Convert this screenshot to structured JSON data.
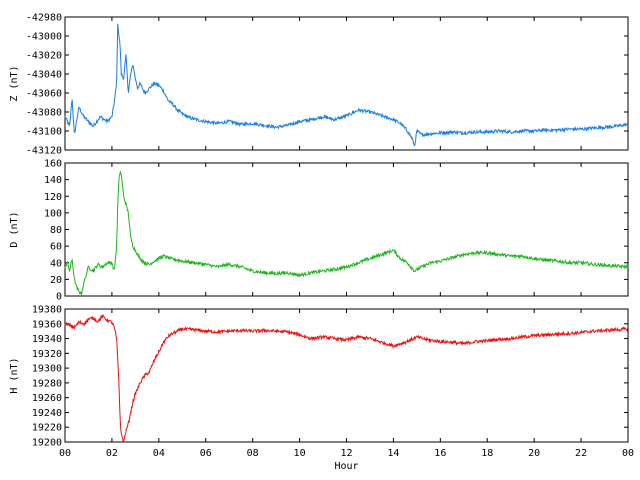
{
  "chart_data": {
    "type": "line",
    "xlabel": "Hour",
    "xlim": [
      0,
      24
    ],
    "x_ticks": [
      "00",
      "02",
      "04",
      "06",
      "08",
      "10",
      "12",
      "14",
      "16",
      "18",
      "20",
      "22",
      "00"
    ],
    "x_tick_values": [
      0,
      2,
      4,
      6,
      8,
      10,
      12,
      14,
      16,
      18,
      20,
      22,
      24
    ],
    "grid": false,
    "panels": [
      {
        "name": "Z",
        "ylabel": "Z (nT)",
        "color": "#1a7be0",
        "ylim": [
          -43120,
          -42980
        ],
        "y_ticks": [
          -42980,
          -43000,
          -43020,
          -43040,
          -43060,
          -43080,
          -43100,
          -43120
        ],
        "y_tick_labels": [
          "-42980",
          "-43000",
          "-43020",
          "-43040",
          "-43060",
          "-43080",
          "-43100",
          "-43120"
        ],
        "series": {
          "x": [
            0,
            0.1,
            0.2,
            0.3,
            0.4,
            0.5,
            0.6,
            0.8,
            1.0,
            1.2,
            1.5,
            1.8,
            2.0,
            2.1,
            2.2,
            2.25,
            2.3,
            2.35,
            2.4,
            2.5,
            2.6,
            2.7,
            2.8,
            2.9,
            3.0,
            3.1,
            3.2,
            3.4,
            3.6,
            3.8,
            4.0,
            4.2,
            4.4,
            4.6,
            4.8,
            5.0,
            5.3,
            5.6,
            6.0,
            6.5,
            7.0,
            7.5,
            8.0,
            8.5,
            9.0,
            9.5,
            10.0,
            10.5,
            11.0,
            11.5,
            12.0,
            12.5,
            13.0,
            13.5,
            14.0,
            14.3,
            14.6,
            14.8,
            14.9,
            15.0,
            15.2,
            15.5,
            16.0,
            16.5,
            17.0,
            17.5,
            18.0,
            18.5,
            19.0,
            19.5,
            20.0,
            20.5,
            21.0,
            21.5,
            22.0,
            22.5,
            23.0,
            23.5,
            24.0
          ],
          "y": [
            -43085,
            -43090,
            -43095,
            -43065,
            -43105,
            -43088,
            -43075,
            -43085,
            -43090,
            -43095,
            -43085,
            -43090,
            -43085,
            -43070,
            -43050,
            -42985,
            -43000,
            -43010,
            -43040,
            -43045,
            -43020,
            -43060,
            -43040,
            -43030,
            -43045,
            -43055,
            -43050,
            -43060,
            -43055,
            -43050,
            -43052,
            -43058,
            -43068,
            -43072,
            -43078,
            -43082,
            -43086,
            -43088,
            -43090,
            -43092,
            -43090,
            -43093,
            -43092,
            -43094,
            -43096,
            -43094,
            -43090,
            -43088,
            -43085,
            -43088,
            -43084,
            -43078,
            -43080,
            -43084,
            -43088,
            -43092,
            -43100,
            -43108,
            -43116,
            -43100,
            -43104,
            -43103,
            -43102,
            -43101,
            -43102,
            -43101,
            -43101,
            -43100,
            -43101,
            -43100,
            -43100,
            -43099,
            -43099,
            -43098,
            -43098,
            -43097,
            -43096,
            -43095,
            -43093
          ]
        }
      },
      {
        "name": "D",
        "ylabel": "D (nT)",
        "color": "#1fb31f",
        "ylim": [
          0,
          160
        ],
        "y_ticks": [
          160,
          140,
          120,
          100,
          80,
          60,
          40,
          20,
          0
        ],
        "y_tick_labels": [
          "160",
          "140",
          "120",
          "100",
          "80",
          "60",
          "40",
          "20",
          "0"
        ],
        "series": {
          "x": [
            0,
            0.1,
            0.2,
            0.3,
            0.4,
            0.5,
            0.6,
            0.7,
            0.8,
            1.0,
            1.2,
            1.4,
            1.6,
            1.8,
            2.0,
            2.1,
            2.2,
            2.25,
            2.3,
            2.35,
            2.4,
            2.5,
            2.6,
            2.7,
            2.8,
            2.9,
            3.0,
            3.2,
            3.4,
            3.6,
            3.8,
            4.0,
            4.2,
            4.5,
            5.0,
            5.5,
            6.0,
            6.5,
            7.0,
            7.5,
            8.0,
            8.5,
            9.0,
            9.5,
            10.0,
            10.5,
            11.0,
            11.5,
            12.0,
            12.5,
            13.0,
            13.5,
            14.0,
            14.3,
            14.6,
            14.9,
            15.2,
            15.6,
            16.0,
            16.5,
            17.0,
            17.5,
            18.0,
            18.5,
            19.0,
            19.5,
            20.0,
            20.5,
            21.0,
            21.5,
            22.0,
            22.5,
            23.0,
            23.5,
            24.0
          ],
          "y": [
            35,
            40,
            30,
            45,
            20,
            10,
            5,
            3,
            15,
            35,
            30,
            38,
            35,
            40,
            40,
            30,
            60,
            110,
            140,
            150,
            145,
            120,
            110,
            100,
            70,
            60,
            55,
            45,
            40,
            38,
            42,
            45,
            48,
            45,
            42,
            40,
            38,
            35,
            38,
            35,
            30,
            28,
            27,
            28,
            25,
            28,
            30,
            32,
            35,
            40,
            45,
            50,
            55,
            45,
            40,
            30,
            35,
            40,
            42,
            46,
            50,
            52,
            52,
            50,
            48,
            48,
            45,
            43,
            42,
            40,
            40,
            38,
            37,
            36,
            35
          ]
        }
      },
      {
        "name": "H",
        "ylabel": "H (nT)",
        "color": "#e81010",
        "ylim": [
          19200,
          19380
        ],
        "y_ticks": [
          19380,
          19360,
          19340,
          19320,
          19300,
          19280,
          19260,
          19240,
          19220,
          19200
        ],
        "y_tick_labels": [
          "19380",
          "19360",
          "19340",
          "19320",
          "19300",
          "19280",
          "19260",
          "19240",
          "19220",
          "19200"
        ],
        "series": {
          "x": [
            0,
            0.2,
            0.4,
            0.6,
            0.8,
            1.0,
            1.2,
            1.4,
            1.6,
            1.8,
            2.0,
            2.1,
            2.2,
            2.3,
            2.35,
            2.4,
            2.5,
            2.6,
            2.7,
            2.8,
            2.9,
            3.0,
            3.2,
            3.4,
            3.6,
            3.8,
            4.0,
            4.2,
            4.4,
            4.6,
            4.8,
            5.0,
            5.5,
            6.0,
            6.5,
            7.0,
            7.5,
            8.0,
            8.5,
            9.0,
            9.5,
            10.0,
            10.5,
            11.0,
            11.5,
            12.0,
            12.5,
            13.0,
            13.5,
            14.0,
            14.5,
            15.0,
            15.5,
            16.0,
            16.5,
            17.0,
            17.5,
            18.0,
            18.5,
            19.0,
            19.5,
            20.0,
            20.5,
            21.0,
            21.5,
            22.0,
            22.5,
            23.0,
            23.5,
            24.0
          ],
          "y": [
            19360,
            19358,
            19355,
            19362,
            19360,
            19366,
            19368,
            19363,
            19370,
            19365,
            19362,
            19355,
            19340,
            19280,
            19230,
            19210,
            19200,
            19215,
            19225,
            19240,
            19255,
            19265,
            19280,
            19290,
            19295,
            19310,
            19322,
            19335,
            19343,
            19347,
            19350,
            19353,
            19352,
            19350,
            19349,
            19350,
            19351,
            19350,
            19351,
            19350,
            19349,
            19345,
            19340,
            19342,
            19340,
            19338,
            19342,
            19340,
            19335,
            19330,
            19335,
            19342,
            19338,
            19336,
            19335,
            19333,
            19336,
            19337,
            19339,
            19340,
            19342,
            19344,
            19345,
            19346,
            19347,
            19348,
            19350,
            19351,
            19352,
            19353
          ]
        }
      }
    ]
  }
}
